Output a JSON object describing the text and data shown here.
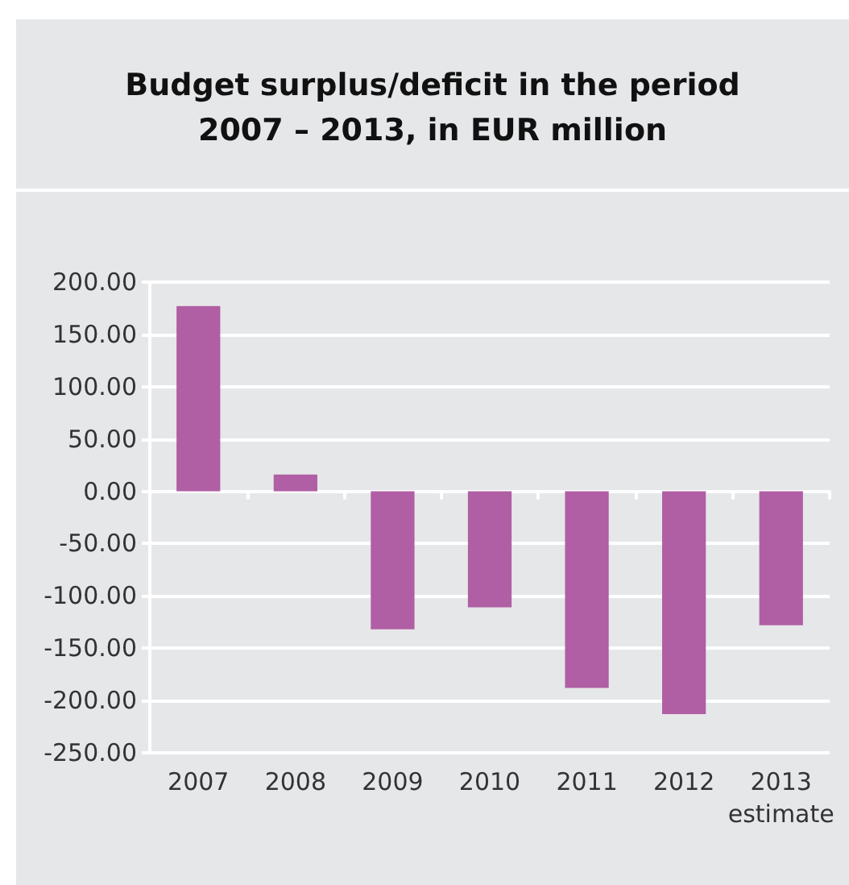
{
  "chart_data": {
    "type": "bar",
    "title": "Budget surplus/deficit in the period\n2007 – 2013, in EUR million",
    "categories": [
      "2007",
      "2008",
      "2009",
      "2010",
      "2011",
      "2012",
      "2013\nestimate"
    ],
    "values": [
      177,
      16,
      -132,
      -111,
      -188,
      -213,
      -128
    ],
    "color": "#b05fa4",
    "ylim": [
      -250,
      200
    ],
    "yticks": [
      {
        "value": -250,
        "label": "-250.00"
      },
      {
        "value": -200,
        "label": "-200.00"
      },
      {
        "value": -150,
        "label": "-150.00"
      },
      {
        "value": -100,
        "label": "-100.00"
      },
      {
        "value": -50,
        "label": "-50.00"
      },
      {
        "value": 0,
        "label": "0.00"
      },
      {
        "value": 50,
        "label": "50.00"
      },
      {
        "value": 100,
        "label": "100.00"
      },
      {
        "value": 150,
        "label": "150.00"
      },
      {
        "value": 200,
        "label": "200.00"
      }
    ],
    "grid": "y"
  }
}
